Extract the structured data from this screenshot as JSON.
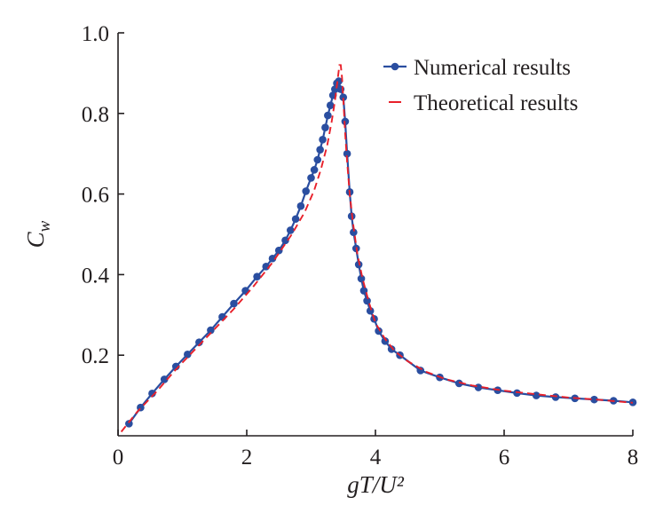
{
  "chart_data": {
    "type": "line",
    "xlabel": "gT/U²",
    "ylabel": "C_w",
    "xlim": [
      0,
      8
    ],
    "ylim": [
      0,
      1.0
    ],
    "xticks": [
      "0",
      "2",
      "4",
      "6",
      "8"
    ],
    "yticks": [
      "0.2",
      "0.4",
      "0.6",
      "0.8",
      "1.0"
    ],
    "legend_position": "top-right",
    "series": [
      {
        "name": "Numerical results",
        "style": "line-with-markers",
        "color": "#2a4ea0",
        "x": [
          0.17,
          0.35,
          0.53,
          0.72,
          0.9,
          1.08,
          1.26,
          1.44,
          1.62,
          1.8,
          1.98,
          2.16,
          2.3,
          2.4,
          2.5,
          2.6,
          2.68,
          2.76,
          2.84,
          2.92,
          3.0,
          3.05,
          3.1,
          3.14,
          3.18,
          3.22,
          3.26,
          3.3,
          3.34,
          3.37,
          3.4,
          3.43,
          3.46,
          3.5,
          3.53,
          3.56,
          3.6,
          3.63,
          3.66,
          3.7,
          3.74,
          3.78,
          3.82,
          3.87,
          3.92,
          3.98,
          4.05,
          4.15,
          4.25,
          4.38,
          4.7,
          5.0,
          5.3,
          5.6,
          5.9,
          6.2,
          6.5,
          6.8,
          7.1,
          7.4,
          7.7,
          8.0
        ],
        "y": [
          0.03,
          0.07,
          0.105,
          0.14,
          0.172,
          0.202,
          0.232,
          0.262,
          0.295,
          0.328,
          0.36,
          0.395,
          0.42,
          0.44,
          0.46,
          0.485,
          0.51,
          0.538,
          0.57,
          0.607,
          0.64,
          0.66,
          0.685,
          0.71,
          0.735,
          0.765,
          0.795,
          0.82,
          0.845,
          0.86,
          0.875,
          0.88,
          0.86,
          0.84,
          0.78,
          0.7,
          0.605,
          0.545,
          0.505,
          0.465,
          0.425,
          0.39,
          0.36,
          0.335,
          0.31,
          0.29,
          0.26,
          0.235,
          0.215,
          0.2,
          0.162,
          0.145,
          0.13,
          0.12,
          0.113,
          0.106,
          0.1,
          0.096,
          0.093,
          0.09,
          0.087,
          0.083
        ]
      },
      {
        "name": "Theoretical results",
        "style": "dashed",
        "color": "#e8202a",
        "x": [
          0.05,
          0.3,
          0.6,
          0.9,
          1.2,
          1.5,
          1.8,
          2.1,
          2.4,
          2.7,
          2.9,
          3.05,
          3.15,
          3.25,
          3.32,
          3.37,
          3.41,
          3.44,
          3.46,
          3.48,
          3.5,
          3.53,
          3.56,
          3.6,
          3.65,
          3.72,
          3.8,
          3.9,
          4.0,
          4.15,
          4.3,
          4.5,
          4.8,
          5.1,
          5.5,
          6.0,
          6.5,
          7.0,
          7.5,
          8.0
        ],
        "y": [
          0.01,
          0.06,
          0.11,
          0.165,
          0.215,
          0.265,
          0.315,
          0.37,
          0.43,
          0.5,
          0.555,
          0.61,
          0.66,
          0.72,
          0.78,
          0.83,
          0.88,
          0.92,
          0.92,
          0.89,
          0.835,
          0.75,
          0.68,
          0.6,
          0.53,
          0.45,
          0.39,
          0.33,
          0.28,
          0.24,
          0.21,
          0.185,
          0.158,
          0.14,
          0.125,
          0.112,
          0.103,
          0.095,
          0.089,
          0.082
        ]
      }
    ]
  }
}
